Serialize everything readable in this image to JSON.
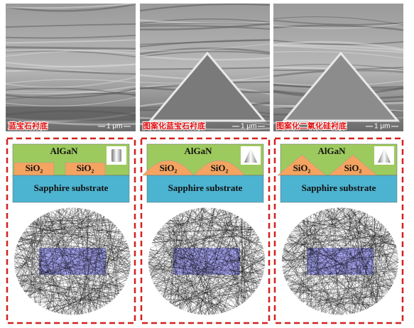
{
  "panels": [
    {
      "label": "蓝宝石衬底",
      "scale": "1 μm",
      "top": "AlGaN",
      "islands": [
        "SiO₂",
        "SiO₂"
      ],
      "substrate": "Sapphire substrate"
    },
    {
      "label": "图案化蓝宝石衬底",
      "scale": "1 μm",
      "top": "AlGaN",
      "islands": [
        "SiO₂",
        "SiO₂"
      ],
      "substrate": "Sapphire substrate"
    },
    {
      "label": "图案化二氧化硅衬底",
      "scale": "1 μm",
      "top": "AlGaN",
      "islands": [
        "SiO₂",
        "SiO₂"
      ],
      "substrate": "Sapphire substrate"
    }
  ]
}
